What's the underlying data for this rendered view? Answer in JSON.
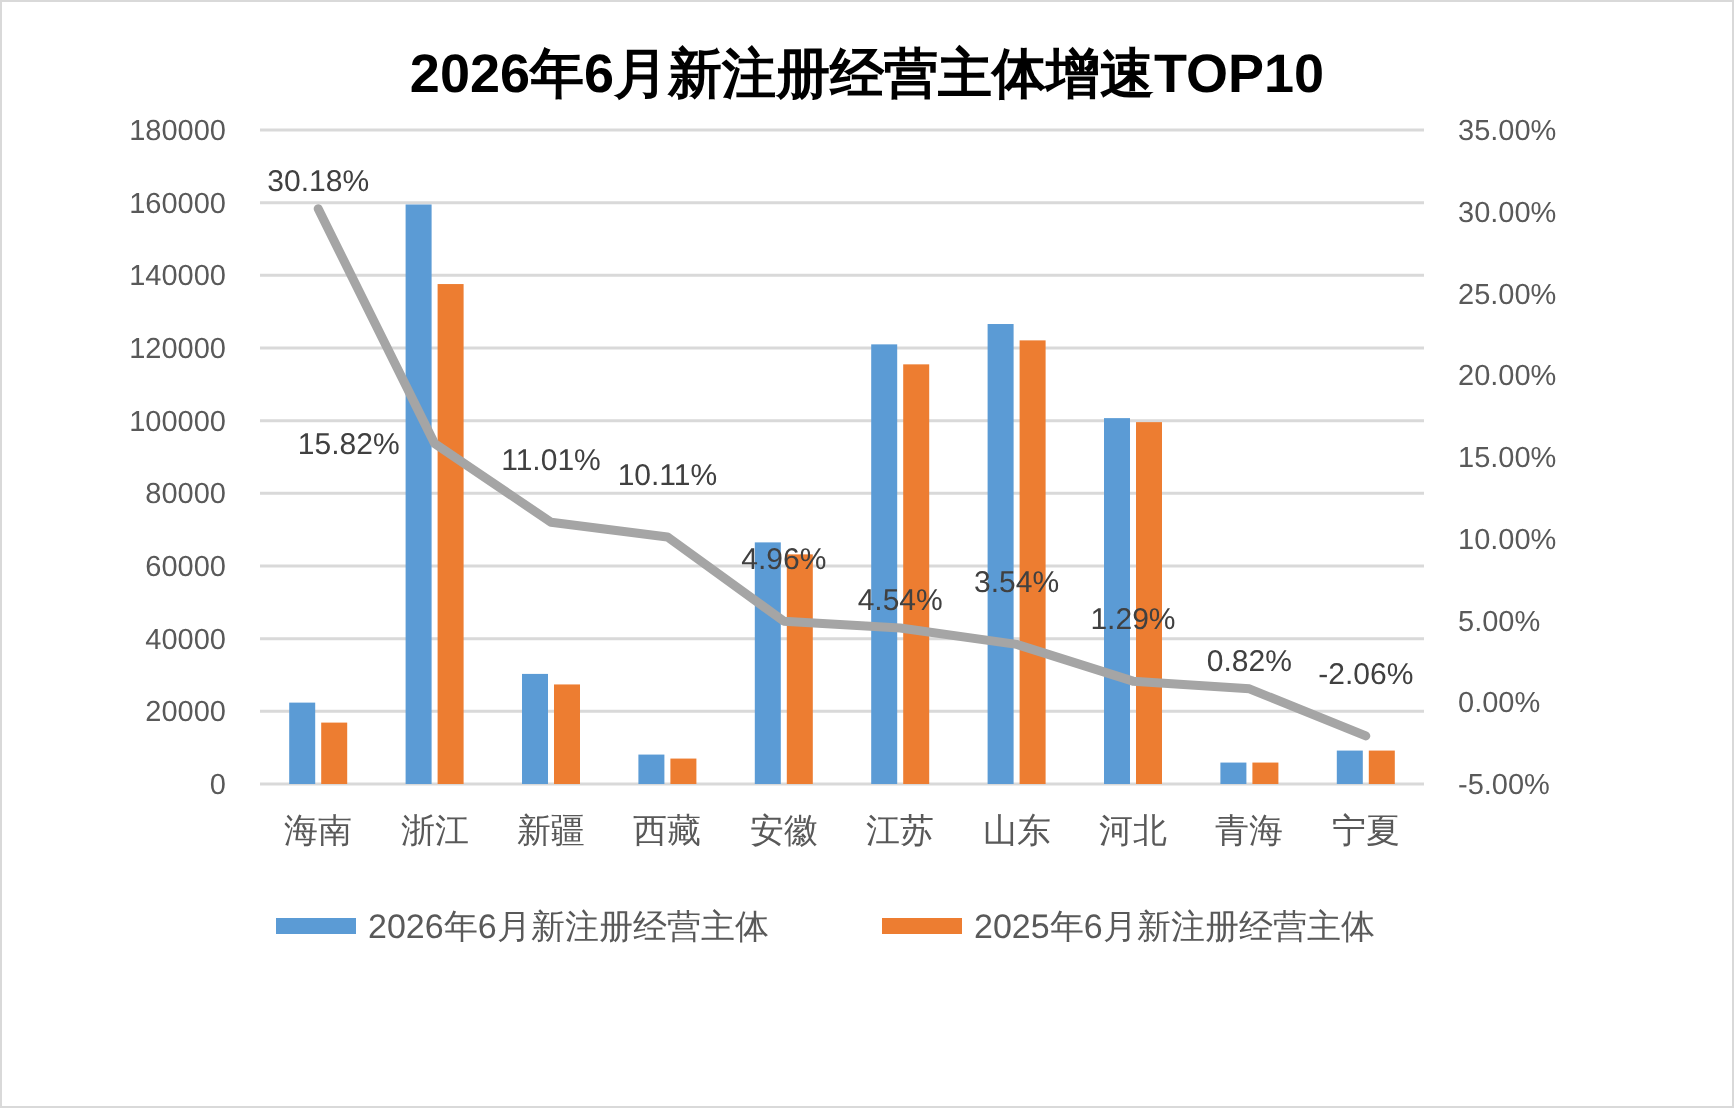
{
  "chart_data": {
    "type": "bar",
    "title": "2026年6月新注册经营主体增速TOP10",
    "categories": [
      "海南",
      "浙江",
      "新疆",
      "西藏",
      "安徽",
      "江苏",
      "山东",
      "河北",
      "青海",
      "宁夏"
    ],
    "series": [
      {
        "name": "2026年6月新注册经营主体",
        "color": "#5b9bd5",
        "values": [
          22400,
          159500,
          30300,
          8100,
          66500,
          121000,
          126600,
          100700,
          5900,
          9200
        ]
      },
      {
        "name": "2025年6月新注册经营主体",
        "color": "#ed7d31",
        "values": [
          16900,
          137600,
          27400,
          7000,
          63200,
          115500,
          122100,
          99600,
          5900,
          9200
        ]
      },
      {
        "type": "line",
        "axis": "y2",
        "color": "#a5a5a5",
        "values": [
          30.18,
          15.82,
          11.01,
          10.11,
          4.96,
          4.54,
          3.54,
          1.29,
          0.82,
          -2.06
        ],
        "value_labels": [
          "30.18%",
          "15.82%",
          "11.01%",
          "10.11%",
          "4.96%",
          "4.54%",
          "3.54%",
          "1.29%",
          "0.82%",
          "-2.06%"
        ]
      }
    ],
    "ylim": [
      0,
      180000
    ],
    "yticks": [
      0,
      20000,
      40000,
      60000,
      80000,
      100000,
      120000,
      140000,
      160000,
      180000
    ],
    "y2lim": [
      -5,
      35
    ],
    "y2ticks": [
      {
        "value": -5,
        "label": "-5.00%"
      },
      {
        "value": 0,
        "label": "0.00%"
      },
      {
        "value": 5,
        "label": "5.00%"
      },
      {
        "value": 10,
        "label": "10.00%"
      },
      {
        "value": 15,
        "label": "15.00%"
      },
      {
        "value": 20,
        "label": "20.00%"
      },
      {
        "value": 25,
        "label": "25.00%"
      },
      {
        "value": 30,
        "label": "30.00%"
      },
      {
        "value": 35,
        "label": "35.00%"
      }
    ],
    "grid": "y",
    "legend": "bottom"
  }
}
